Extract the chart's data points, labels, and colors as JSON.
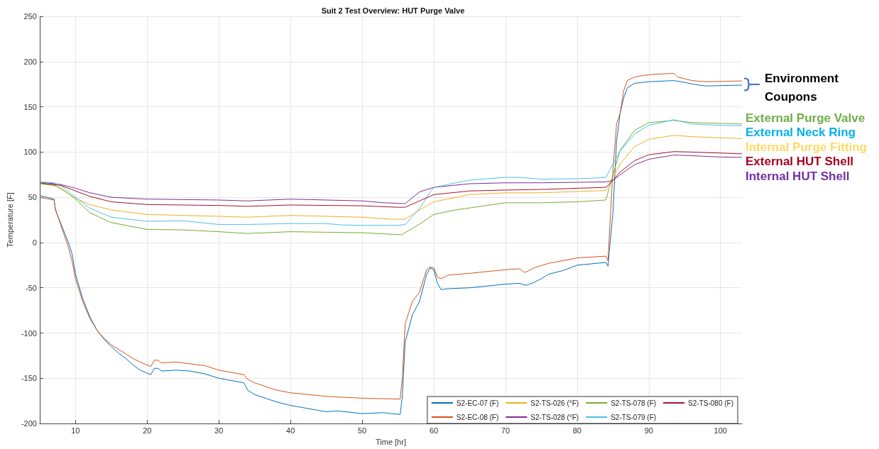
{
  "chart_data": {
    "type": "line",
    "title": "Suit 2 Test Overview: HUT Purge Valve",
    "xlabel": "Time [hr]",
    "ylabel": "Temperature [F]",
    "xlim": [
      5,
      103
    ],
    "xticks": [
      10,
      20,
      30,
      40,
      50,
      60,
      70,
      80,
      90,
      100
    ],
    "ylim": [
      -200,
      250
    ],
    "yticks": [
      -200,
      -150,
      -100,
      -50,
      0,
      50,
      100,
      150,
      200,
      250
    ],
    "grid": true,
    "legend": "bottom right",
    "marker": "none",
    "line_style": "solid",
    "annotations": [
      "Environment Coupons",
      "External Purge Valve",
      "External Neck Ring",
      "Internal Purge Fitting",
      "External HUT Shell",
      "Internal HUT Shell"
    ],
    "series": [
      {
        "name": "S2-EC-07 (F)",
        "color": "#0072bd",
        "x": [
          5,
          7,
          7.2,
          8,
          9,
          9.5,
          10,
          11,
          12,
          13,
          14,
          15,
          16,
          17,
          18,
          19,
          20.5,
          21,
          21.5,
          22,
          24,
          26,
          28,
          30,
          33.5,
          34,
          35,
          38,
          40,
          45,
          46.5,
          50,
          53,
          54,
          55.3,
          55.6,
          56,
          57,
          58,
          59,
          59.5,
          60,
          60.5,
          61,
          62,
          65,
          70,
          72,
          72.6,
          73,
          74,
          75,
          76,
          78,
          80,
          84,
          84.3,
          85,
          85.5,
          86,
          86.5,
          87,
          88,
          90,
          93.5,
          95,
          96.5,
          98,
          103
        ],
        "values": [
          52,
          48,
          36,
          20,
          0,
          -12,
          -35,
          -62,
          -82,
          -97,
          -107,
          -115,
          -122,
          -128,
          -135,
          -141,
          -146,
          -139,
          -139,
          -142,
          -141,
          -142,
          -145,
          -150,
          -155,
          -163,
          -168,
          -176,
          -180,
          -187,
          -186,
          -189,
          -188,
          -189,
          -190,
          -170,
          -110,
          -80,
          -65,
          -35,
          -28,
          -30,
          -45,
          -52,
          -51,
          -50,
          -46,
          -45,
          -47,
          -47,
          -44,
          -40,
          -35,
          -31,
          -25,
          -22,
          -26,
          34,
          112,
          143,
          160,
          171,
          176,
          177.7,
          179,
          177,
          174.6,
          173,
          174
        ]
      },
      {
        "name": "S2-EC-08 (F)",
        "color": "#d95319",
        "x": [
          5,
          7,
          7.2,
          8,
          9,
          9.5,
          10,
          11,
          12,
          13,
          14,
          15,
          16,
          17,
          18,
          19,
          20.5,
          21,
          21.5,
          22,
          24,
          26,
          28,
          30,
          33.5,
          34,
          35,
          38,
          40,
          45,
          50,
          55.3,
          55.6,
          56,
          57,
          58,
          59,
          59.5,
          60,
          60.5,
          61,
          62,
          65,
          70,
          72,
          72.6,
          73,
          74,
          76,
          80,
          84,
          84.3,
          85,
          85.5,
          86,
          86.5,
          87,
          88,
          90,
          93.5,
          94,
          96,
          98,
          103
        ],
        "values": [
          50,
          47,
          37,
          18,
          -5,
          -20,
          -40,
          -65,
          -84,
          -97,
          -106,
          -113,
          -118,
          -123,
          -128,
          -132,
          -137,
          -130,
          -130,
          -133,
          -132,
          -134,
          -136,
          -141,
          -146,
          -151,
          -155,
          -163,
          -166,
          -170,
          -172,
          -173,
          -150,
          -90,
          -65,
          -55,
          -30,
          -27,
          -28,
          -38,
          -40,
          -36,
          -34,
          -30,
          -29,
          -33,
          -32,
          -28,
          -23,
          -17,
          -15,
          -20,
          81,
          131,
          143,
          168,
          179,
          183,
          185.5,
          187,
          183,
          179,
          177.7,
          178.6
        ]
      },
      {
        "name": "S2-TS-026 (°F)",
        "color": "#edb120",
        "x": [
          5,
          7,
          10,
          12,
          15,
          20,
          30,
          34,
          40,
          50,
          54,
          56,
          58,
          60,
          65,
          70,
          75,
          84,
          85,
          86,
          88,
          90,
          93.5,
          96,
          103
        ],
        "values": [
          65,
          64,
          49,
          42,
          36,
          31,
          29,
          28,
          30,
          28,
          25.8,
          25.8,
          36,
          45,
          53,
          55,
          55,
          57.5,
          72,
          87,
          106,
          114,
          118.5,
          117,
          114.8
        ]
      },
      {
        "name": "S2-TS-028 (°F)",
        "color": "#7e2f8e",
        "x": [
          5,
          8,
          10,
          12,
          15,
          20,
          30,
          34,
          40,
          50,
          53,
          56,
          58,
          60,
          65,
          70,
          75,
          84,
          85,
          86,
          88,
          90,
          93.5,
          96,
          100,
          103
        ],
        "values": [
          67,
          64,
          60,
          55,
          50,
          48,
          47,
          46,
          48,
          46,
          44,
          43,
          56,
          61,
          65,
          66,
          66,
          67,
          68.6,
          75,
          86,
          92,
          96.7,
          96,
          94.5,
          94.2
        ]
      },
      {
        "name": "S2-TS-078 (F)",
        "color": "#77ac30",
        "x": [
          5,
          7,
          8,
          10,
          12,
          15,
          20,
          25,
          30,
          34,
          40,
          50,
          55.5,
          58,
          60,
          63,
          70,
          72,
          75,
          80,
          84,
          85,
          86,
          88,
          90,
          93.5,
          96,
          103
        ],
        "values": [
          65,
          63,
          60,
          48,
          33,
          22,
          14.5,
          14,
          12,
          10,
          12,
          10.8,
          8.6,
          20.4,
          31,
          36,
          44,
          44,
          44,
          45,
          47,
          75,
          102,
          124,
          132.5,
          135,
          132.6,
          131
        ]
      },
      {
        "name": "S2-TS-079 (F)",
        "color": "#4dbeee",
        "x": [
          5,
          7,
          8,
          10,
          12,
          15,
          20,
          25,
          30,
          34,
          40,
          45,
          47,
          50,
          55,
          56,
          58,
          59.5,
          60,
          65,
          70,
          72,
          75,
          80,
          84,
          85,
          86,
          88,
          90,
          93.5,
          96,
          100,
          103
        ],
        "values": [
          67,
          66,
          63,
          50,
          38,
          28,
          23.5,
          24,
          20,
          20,
          21,
          21,
          19.5,
          19,
          19,
          20,
          37.6,
          56,
          61,
          69,
          72,
          72,
          70,
          70.5,
          71.8,
          87,
          101,
          120,
          129.5,
          135.7,
          131,
          129.5,
          129
        ]
      },
      {
        "name": "S2-TS-080 (F)",
        "color": "#a2142f",
        "x": [
          5,
          8,
          10,
          12,
          15,
          20,
          30,
          34,
          40,
          50,
          55,
          56,
          58,
          60,
          65,
          70,
          75,
          84,
          85,
          86,
          88,
          90,
          93.5,
          96,
          103
        ],
        "values": [
          66,
          63,
          57,
          51,
          45,
          42,
          41,
          40,
          41.5,
          40.6,
          39,
          39,
          46,
          53,
          57,
          58,
          58.7,
          61,
          68.6,
          78,
          90.5,
          97,
          100.5,
          100,
          98
        ]
      }
    ]
  }
}
